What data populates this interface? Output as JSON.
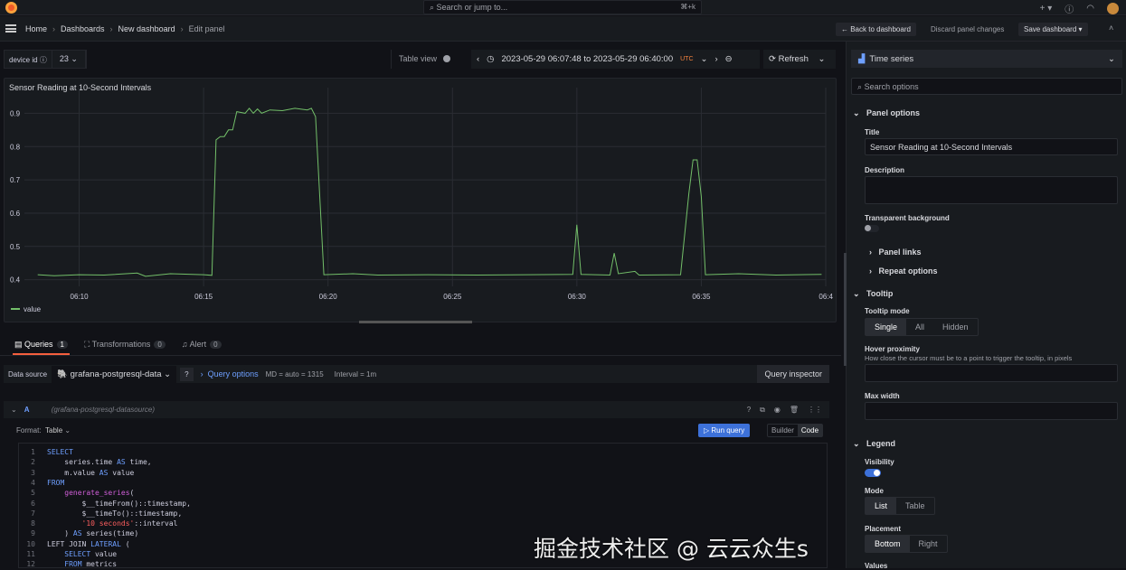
{
  "topbar": {
    "search_placeholder": "Search or jump to...",
    "shortcut": "⌘+k",
    "icons": [
      "grafana-logo",
      "plus-icon",
      "help-icon",
      "rss-icon",
      "avatar"
    ]
  },
  "breadcrumb": [
    "Home",
    "Dashboards",
    "New dashboard",
    "Edit panel"
  ],
  "nav_actions": {
    "back": "← Back to dashboard",
    "discard": "Discard panel changes",
    "save": "Save dashboard"
  },
  "variable": {
    "label": "device id",
    "value": "23"
  },
  "toolbar": {
    "table_view": "Table view",
    "time_range": "2023-05-29 06:07:48 to 2023-05-29 06:40:00",
    "timezone": "UTC",
    "refresh": "Refresh"
  },
  "panel": {
    "title": "Sensor Reading at 10-Second Intervals"
  },
  "chart_data": {
    "type": "line",
    "title": "Sensor Reading at 10-Second Intervals",
    "xlabel": "",
    "ylabel": "",
    "x_range": [
      "06:07:48",
      "06:40:00"
    ],
    "ylim": [
      0.38,
      0.95
    ],
    "yticks": [
      0.4,
      0.5,
      0.6,
      0.7,
      0.8,
      0.9
    ],
    "xticks": [
      "06:10",
      "06:15",
      "06:20",
      "06:25",
      "06:30",
      "06:35",
      "06:4"
    ],
    "grid": true,
    "legend": "bottom-left",
    "color": "#73bf69",
    "series": [
      {
        "name": "value",
        "points": [
          [
            "06:08:20",
            0.415
          ],
          [
            "06:09:00",
            0.412
          ],
          [
            "06:10:00",
            0.415
          ],
          [
            "06:11:00",
            0.414
          ],
          [
            "06:12:20",
            0.42
          ],
          [
            "06:12:40",
            0.41
          ],
          [
            "06:13:40",
            0.418
          ],
          [
            "06:15:00",
            0.415
          ],
          [
            "06:15:20",
            0.413
          ],
          [
            "06:15:30",
            0.82
          ],
          [
            "06:15:40",
            0.83
          ],
          [
            "06:15:50",
            0.83
          ],
          [
            "06:16:00",
            0.85
          ],
          [
            "06:16:10",
            0.85
          ],
          [
            "06:16:20",
            0.905
          ],
          [
            "06:16:40",
            0.9
          ],
          [
            "06:16:50",
            0.915
          ],
          [
            "06:17:00",
            0.9
          ],
          [
            "06:17:10",
            0.913
          ],
          [
            "06:17:20",
            0.9
          ],
          [
            "06:17:40",
            0.91
          ],
          [
            "06:18:10",
            0.908
          ],
          [
            "06:18:40",
            0.915
          ],
          [
            "06:19:10",
            0.91
          ],
          [
            "06:19:20",
            0.915
          ],
          [
            "06:19:30",
            0.89
          ],
          [
            "06:19:50",
            0.415
          ],
          [
            "06:21:00",
            0.418
          ],
          [
            "06:22:00",
            0.414
          ],
          [
            "06:24:00",
            0.415
          ],
          [
            "06:26:00",
            0.414
          ],
          [
            "06:28:00",
            0.415
          ],
          [
            "06:29:50",
            0.416
          ],
          [
            "06:30:00",
            0.565
          ],
          [
            "06:30:10",
            0.416
          ],
          [
            "06:31:20",
            0.414
          ],
          [
            "06:31:30",
            0.48
          ],
          [
            "06:31:40",
            0.418
          ],
          [
            "06:32:20",
            0.425
          ],
          [
            "06:32:30",
            0.414
          ],
          [
            "06:34:10",
            0.415
          ],
          [
            "06:34:30",
            0.66
          ],
          [
            "06:34:40",
            0.76
          ],
          [
            "06:34:50",
            0.76
          ],
          [
            "06:35:00",
            0.65
          ],
          [
            "06:35:10",
            0.415
          ],
          [
            "06:36:30",
            0.418
          ],
          [
            "06:38:00",
            0.414
          ],
          [
            "06:39:50",
            0.416
          ]
        ]
      }
    ]
  },
  "query_tabs": [
    {
      "label": "Queries",
      "count": "1"
    },
    {
      "label": "Transformations",
      "count": "0"
    },
    {
      "label": "Alert",
      "count": "0"
    }
  ],
  "query_bar": {
    "ds_label": "Data source",
    "datasource": "grafana-postgresql-data",
    "query_options": "Query options",
    "md": "MD = auto = 1315",
    "interval": "Interval = 1m",
    "inspector": "Query inspector"
  },
  "query": {
    "ref": "A",
    "ds": "(grafana-postgresql-datasource)",
    "format_label": "Format:",
    "format": "Table",
    "run": "Run query",
    "builder": "Builder",
    "code": "Code",
    "lines": [
      [
        {
          "t": "SELECT",
          "c": "kw"
        }
      ],
      [
        {
          "t": "    series.time "
        },
        {
          "t": "AS",
          "c": "kw"
        },
        {
          "t": " time,"
        }
      ],
      [
        {
          "t": "    m.value "
        },
        {
          "t": "AS",
          "c": "kw"
        },
        {
          "t": " value"
        }
      ],
      [
        {
          "t": "FROM",
          "c": "kw"
        }
      ],
      [
        {
          "t": "    "
        },
        {
          "t": "generate_series",
          "c": "fn"
        },
        {
          "t": "("
        }
      ],
      [
        {
          "t": "        $__timeFrom()::timestamp,"
        }
      ],
      [
        {
          "t": "        $__timeTo()::timestamp,"
        }
      ],
      [
        {
          "t": "        "
        },
        {
          "t": "'10 seconds'",
          "c": "str"
        },
        {
          "t": "::interval"
        }
      ],
      [
        {
          "t": "    ) "
        },
        {
          "t": "AS",
          "c": "kw"
        },
        {
          "t": " series(time)"
        }
      ],
      [
        {
          "t": "LEFT JOIN "
        },
        {
          "t": "LATERAL",
          "c": "kw"
        },
        {
          "t": " ("
        }
      ],
      [
        {
          "t": "    "
        },
        {
          "t": "SELECT",
          "c": "kw"
        },
        {
          "t": " value"
        }
      ],
      [
        {
          "t": "    "
        },
        {
          "t": "FROM",
          "c": "kw"
        },
        {
          "t": " metrics"
        }
      ]
    ]
  },
  "options": {
    "viz": "Time series",
    "search_placeholder": "Search options",
    "panel_options": "Panel options",
    "title_label": "Title",
    "title_value": "Sensor Reading at 10-Second Intervals",
    "description_label": "Description",
    "transparent_label": "Transparent background",
    "transparent_on": false,
    "panel_links": "Panel links",
    "repeat_options": "Repeat options",
    "tooltip": "Tooltip",
    "tooltip_mode": "Tooltip mode",
    "tooltip_modes": [
      "Single",
      "All",
      "Hidden"
    ],
    "hover_label": "Hover proximity",
    "hover_desc": "How close the cursor must be to a point to trigger the tooltip, in pixels",
    "max_width": "Max width",
    "legend": "Legend",
    "visibility": "Visibility",
    "visibility_on": true,
    "mode": "Mode",
    "modes": [
      "List",
      "Table"
    ],
    "placement": "Placement",
    "placements": [
      "Bottom",
      "Right"
    ],
    "values": "Values"
  },
  "watermark": "掘金技术社区 @ 云云众生s"
}
